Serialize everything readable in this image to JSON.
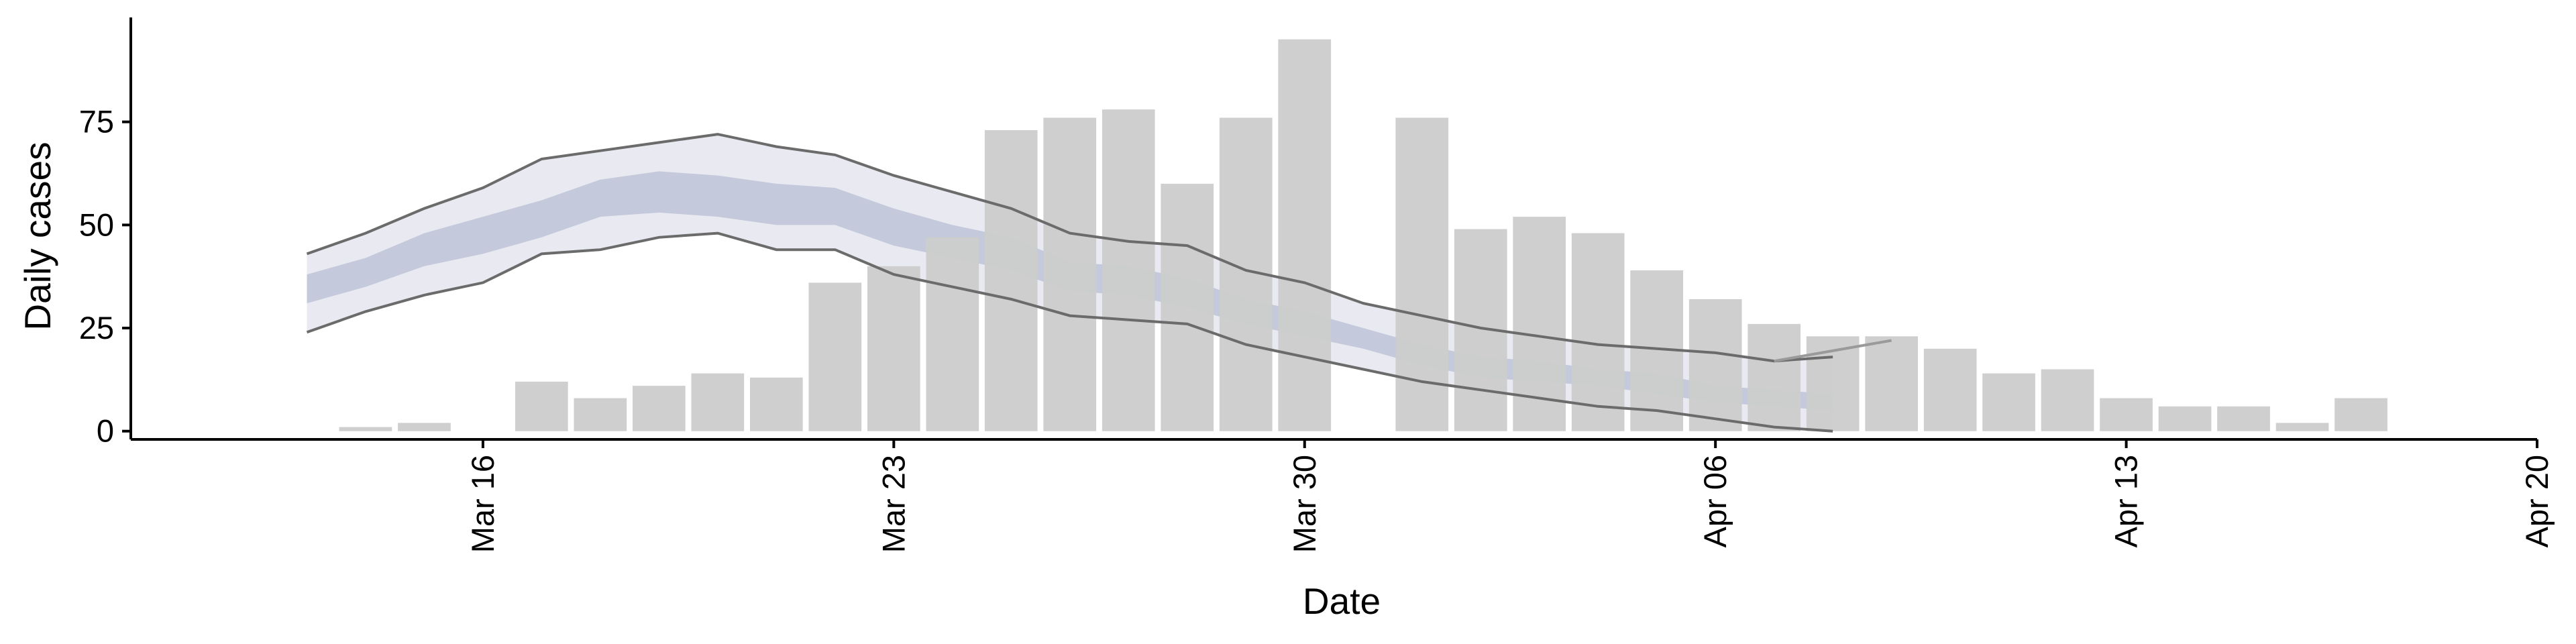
{
  "chart_data": {
    "type": "bar",
    "xlabel": "Date",
    "ylabel": "Daily cases",
    "grid": false,
    "legend": "none",
    "x_axis": {
      "type": "date",
      "range": [
        "2020-03-10",
        "2020-04-20"
      ],
      "ticks": [
        {
          "date": "2020-03-16",
          "label": "Mar 16"
        },
        {
          "date": "2020-03-23",
          "label": "Mar 23"
        },
        {
          "date": "2020-03-30",
          "label": "Mar 30"
        },
        {
          "date": "2020-04-06",
          "label": "Apr 06"
        },
        {
          "date": "2020-04-13",
          "label": "Apr 13"
        },
        {
          "date": "2020-04-20",
          "label": "Apr 20"
        }
      ]
    },
    "y_axis": {
      "range": [
        -2,
        100
      ],
      "ticks": [
        0,
        25,
        50,
        75
      ]
    },
    "colors": {
      "bars": "#cccccc",
      "outer_band": "#e9eaf1",
      "inner_band": "#c4cadb",
      "band_lines": "#6b6b6b"
    },
    "bars": [
      {
        "date": "2020-03-14",
        "value": 1
      },
      {
        "date": "2020-03-15",
        "value": 2
      },
      {
        "date": "2020-03-17",
        "value": 12
      },
      {
        "date": "2020-03-18",
        "value": 8
      },
      {
        "date": "2020-03-19",
        "value": 11
      },
      {
        "date": "2020-03-20",
        "value": 14
      },
      {
        "date": "2020-03-21",
        "value": 13
      },
      {
        "date": "2020-03-22",
        "value": 36
      },
      {
        "date": "2020-03-23",
        "value": 40
      },
      {
        "date": "2020-03-24",
        "value": 47
      },
      {
        "date": "2020-03-25",
        "value": 73
      },
      {
        "date": "2020-03-26",
        "value": 76
      },
      {
        "date": "2020-03-27",
        "value": 78
      },
      {
        "date": "2020-03-28",
        "value": 60
      },
      {
        "date": "2020-03-29",
        "value": 76
      },
      {
        "date": "2020-03-30",
        "value": 95
      },
      {
        "date": "2020-04-01",
        "value": 76
      },
      {
        "date": "2020-04-02",
        "value": 49
      },
      {
        "date": "2020-04-03",
        "value": 52
      },
      {
        "date": "2020-04-04",
        "value": 48
      },
      {
        "date": "2020-04-05",
        "value": 39
      },
      {
        "date": "2020-04-06",
        "value": 32
      },
      {
        "date": "2020-04-07",
        "value": 26
      },
      {
        "date": "2020-04-08",
        "value": 23
      },
      {
        "date": "2020-04-09",
        "value": 23
      },
      {
        "date": "2020-04-10",
        "value": 20
      },
      {
        "date": "2020-04-11",
        "value": 14
      },
      {
        "date": "2020-04-12",
        "value": 15
      },
      {
        "date": "2020-04-13",
        "value": 8
      },
      {
        "date": "2020-04-14",
        "value": 6
      },
      {
        "date": "2020-04-15",
        "value": 6
      },
      {
        "date": "2020-04-16",
        "value": 2
      },
      {
        "date": "2020-04-17",
        "value": 8
      }
    ],
    "bands": {
      "dates": [
        "2020-03-13",
        "2020-03-14",
        "2020-03-15",
        "2020-03-16",
        "2020-03-17",
        "2020-03-18",
        "2020-03-19",
        "2020-03-20",
        "2020-03-21",
        "2020-03-22",
        "2020-03-23",
        "2020-03-24",
        "2020-03-25",
        "2020-03-26",
        "2020-03-27",
        "2020-03-28",
        "2020-03-29",
        "2020-03-30",
        "2020-03-31",
        "2020-04-01",
        "2020-04-02",
        "2020-04-03",
        "2020-04-04",
        "2020-04-05",
        "2020-04-06",
        "2020-04-07",
        "2020-04-08"
      ],
      "upper_outer": [
        43,
        48,
        54,
        59,
        66,
        68,
        70,
        72,
        69,
        67,
        62,
        58,
        54,
        48,
        46,
        45,
        39,
        36,
        31,
        28,
        25,
        23,
        21,
        20,
        19,
        17,
        18
      ],
      "upper_inner": [
        38,
        42,
        48,
        52,
        56,
        61,
        63,
        62,
        60,
        59,
        54,
        50,
        47,
        41,
        40,
        37,
        32,
        29,
        25,
        21,
        18,
        17,
        15,
        14,
        11,
        10,
        9
      ],
      "lower_inner": [
        31,
        35,
        40,
        43,
        47,
        52,
        53,
        52,
        50,
        50,
        45,
        42,
        39,
        34,
        33,
        30,
        26,
        23,
        20,
        16,
        13,
        12,
        11,
        9,
        7,
        6,
        5
      ],
      "lower_outer": [
        24,
        29,
        33,
        36,
        43,
        44,
        47,
        48,
        44,
        44,
        38,
        35,
        32,
        28,
        27,
        26,
        21,
        18,
        15,
        12,
        10,
        8,
        6,
        5,
        3,
        1,
        0
      ],
      "tail": [
        {
          "date": "2020-04-07",
          "value": 17
        },
        {
          "date": "2020-04-09",
          "value": 22
        }
      ]
    }
  }
}
